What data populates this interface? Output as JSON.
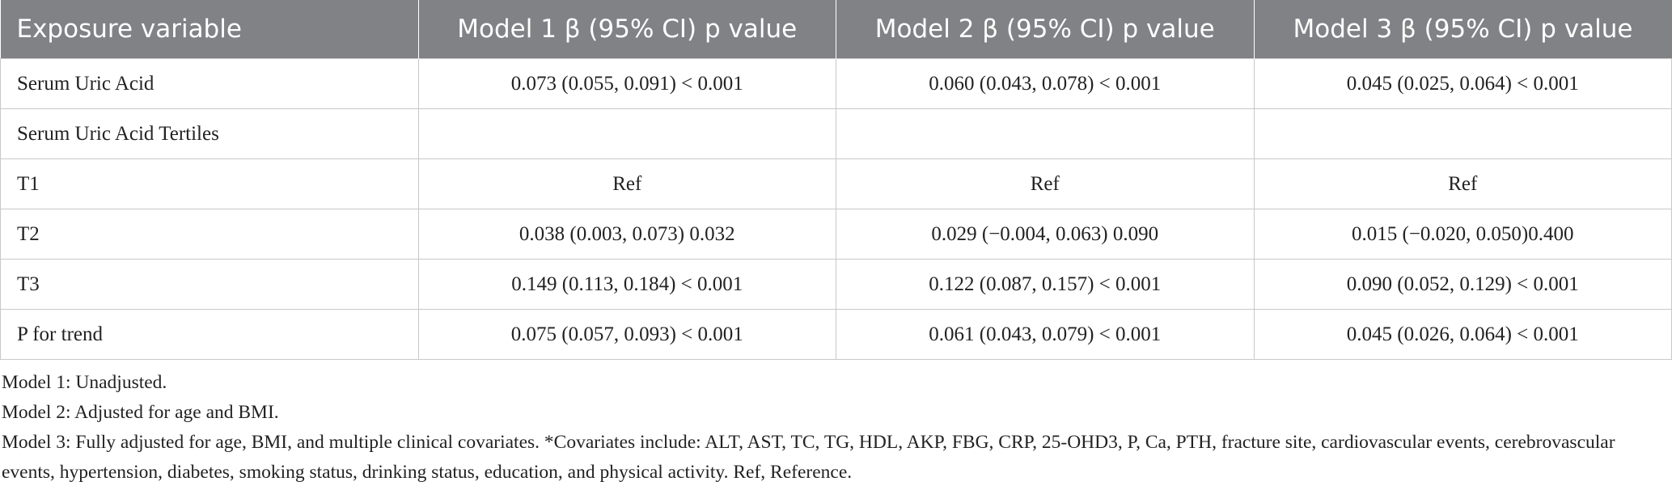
{
  "table": {
    "header": [
      "Exposure variable",
      "Model 1 β (95% CI) p value",
      "Model 2 β (95% CI) p value",
      "Model 3 β (95% CI) p value"
    ],
    "rows": [
      [
        "Serum Uric Acid",
        "0.073 (0.055, 0.091) < 0.001",
        "0.060 (0.043, 0.078) < 0.001",
        "0.045 (0.025, 0.064) < 0.001"
      ],
      [
        "Serum Uric Acid Tertiles",
        null,
        null,
        null
      ],
      [
        "T1",
        "Ref",
        "Ref",
        "Ref"
      ],
      [
        "T2",
        "0.038 (0.003, 0.073) 0.032",
        "0.029 (−0.004, 0.063) 0.090",
        "0.015 (−0.020, 0.050)0.400"
      ],
      [
        "T3",
        "0.149 (0.113, 0.184) < 0.001",
        "0.122 (0.087, 0.157) < 0.001",
        "0.090 (0.052, 0.129) < 0.001"
      ],
      [
        "P for trend",
        "0.075 (0.057, 0.093) < 0.001",
        "0.061 (0.043, 0.079) < 0.001",
        "0.045 (0.026, 0.064) < 0.001"
      ]
    ]
  },
  "footnotes": [
    "Model 1: Unadjusted.",
    "Model 2: Adjusted for age and BMI.",
    "Model 3: Fully adjusted for age, BMI, and multiple clinical covariates. *Covariates include: ALT, AST, TC, TG, HDL, AKP, FBG, CRP, 25-OHD3, P, Ca, PTH, fracture site, cardiovascular events, cerebrovascular events, hypertension, diabetes, smoking status, drinking status, education, and physical activity. Ref, Reference."
  ]
}
